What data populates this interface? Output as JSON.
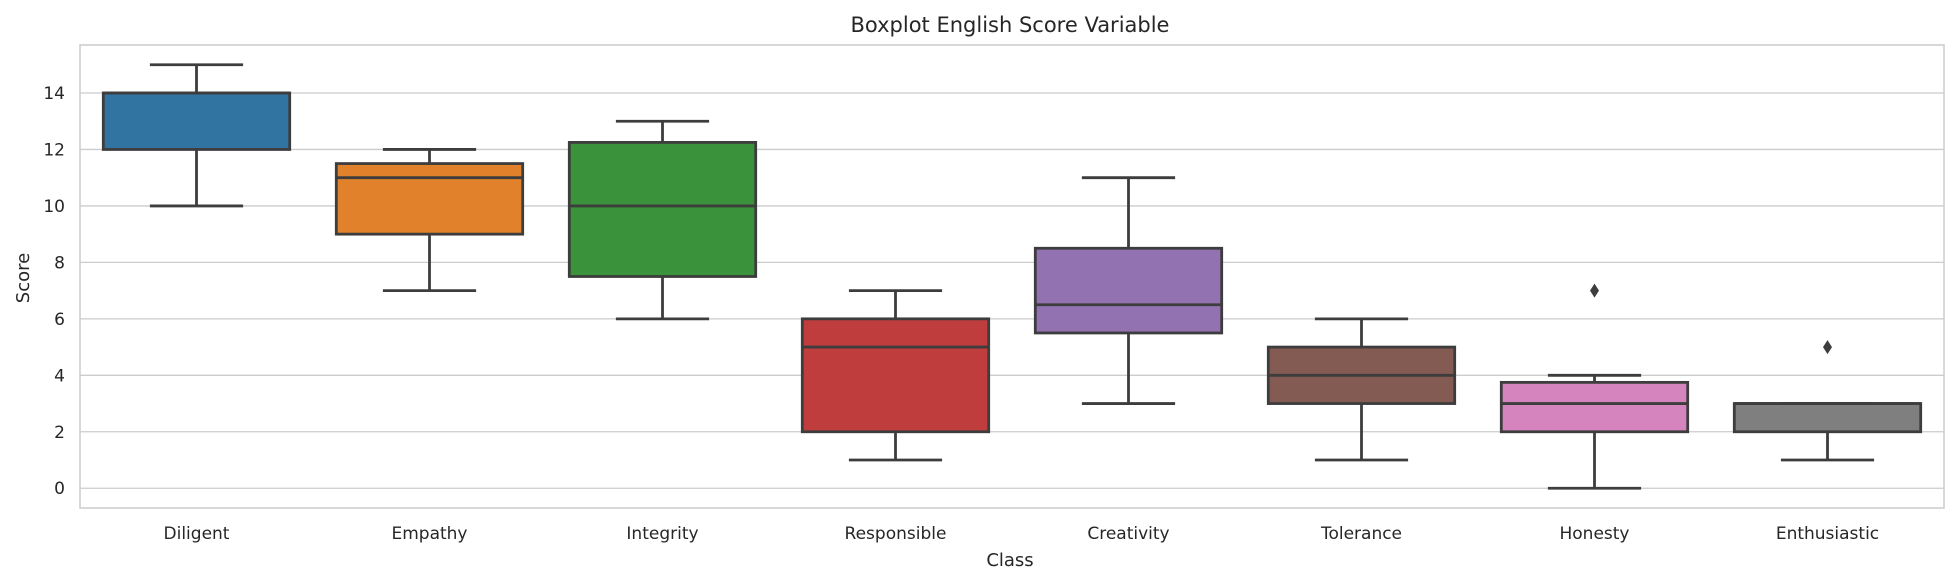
{
  "chart_data": {
    "type": "boxplot",
    "title": "Boxplot English Score Variable",
    "xlabel": "Class",
    "ylabel": "Score",
    "ylim": [
      -0.7,
      15.7
    ],
    "yticks": [
      0,
      2,
      4,
      6,
      8,
      10,
      12,
      14
    ],
    "grid": "horizontal",
    "categories": [
      "Diligent",
      "Empathy",
      "Integrity",
      "Responsible",
      "Creativity",
      "Tolerance",
      "Honesty",
      "Enthusiastic"
    ],
    "boxes": [
      {
        "category": "Diligent",
        "whisker_low": 10,
        "q1": 12,
        "median": 14,
        "q3": 14,
        "whisker_high": 15,
        "outliers": [],
        "color": "#3274a1"
      },
      {
        "category": "Empathy",
        "whisker_low": 7,
        "q1": 9,
        "median": 11,
        "q3": 11.5,
        "whisker_high": 12,
        "outliers": [],
        "color": "#e1812c"
      },
      {
        "category": "Integrity",
        "whisker_low": 6,
        "q1": 7.5,
        "median": 10,
        "q3": 12.25,
        "whisker_high": 13,
        "outliers": [],
        "color": "#3a923a"
      },
      {
        "category": "Responsible",
        "whisker_low": 1,
        "q1": 2,
        "median": 5,
        "q3": 6,
        "whisker_high": 7,
        "outliers": [],
        "color": "#c03d3e"
      },
      {
        "category": "Creativity",
        "whisker_low": 3,
        "q1": 5.5,
        "median": 6.5,
        "q3": 8.5,
        "whisker_high": 11,
        "outliers": [],
        "color": "#9372b2"
      },
      {
        "category": "Tolerance",
        "whisker_low": 1,
        "q1": 3,
        "median": 4,
        "q3": 5,
        "whisker_high": 6,
        "outliers": [],
        "color": "#845b53"
      },
      {
        "category": "Honesty",
        "whisker_low": 0,
        "q1": 2,
        "median": 3,
        "q3": 3.75,
        "whisker_high": 4,
        "outliers": [
          7
        ],
        "color": "#d684bd"
      },
      {
        "category": "Enthusiastic",
        "whisker_low": 1,
        "q1": 2,
        "median": 3,
        "q3": 3,
        "whisker_high": 3,
        "outliers": [
          5
        ],
        "color": "#7f7f7f"
      }
    ],
    "line_color": "#3d3d3d",
    "grid_color": "#cccccc"
  }
}
